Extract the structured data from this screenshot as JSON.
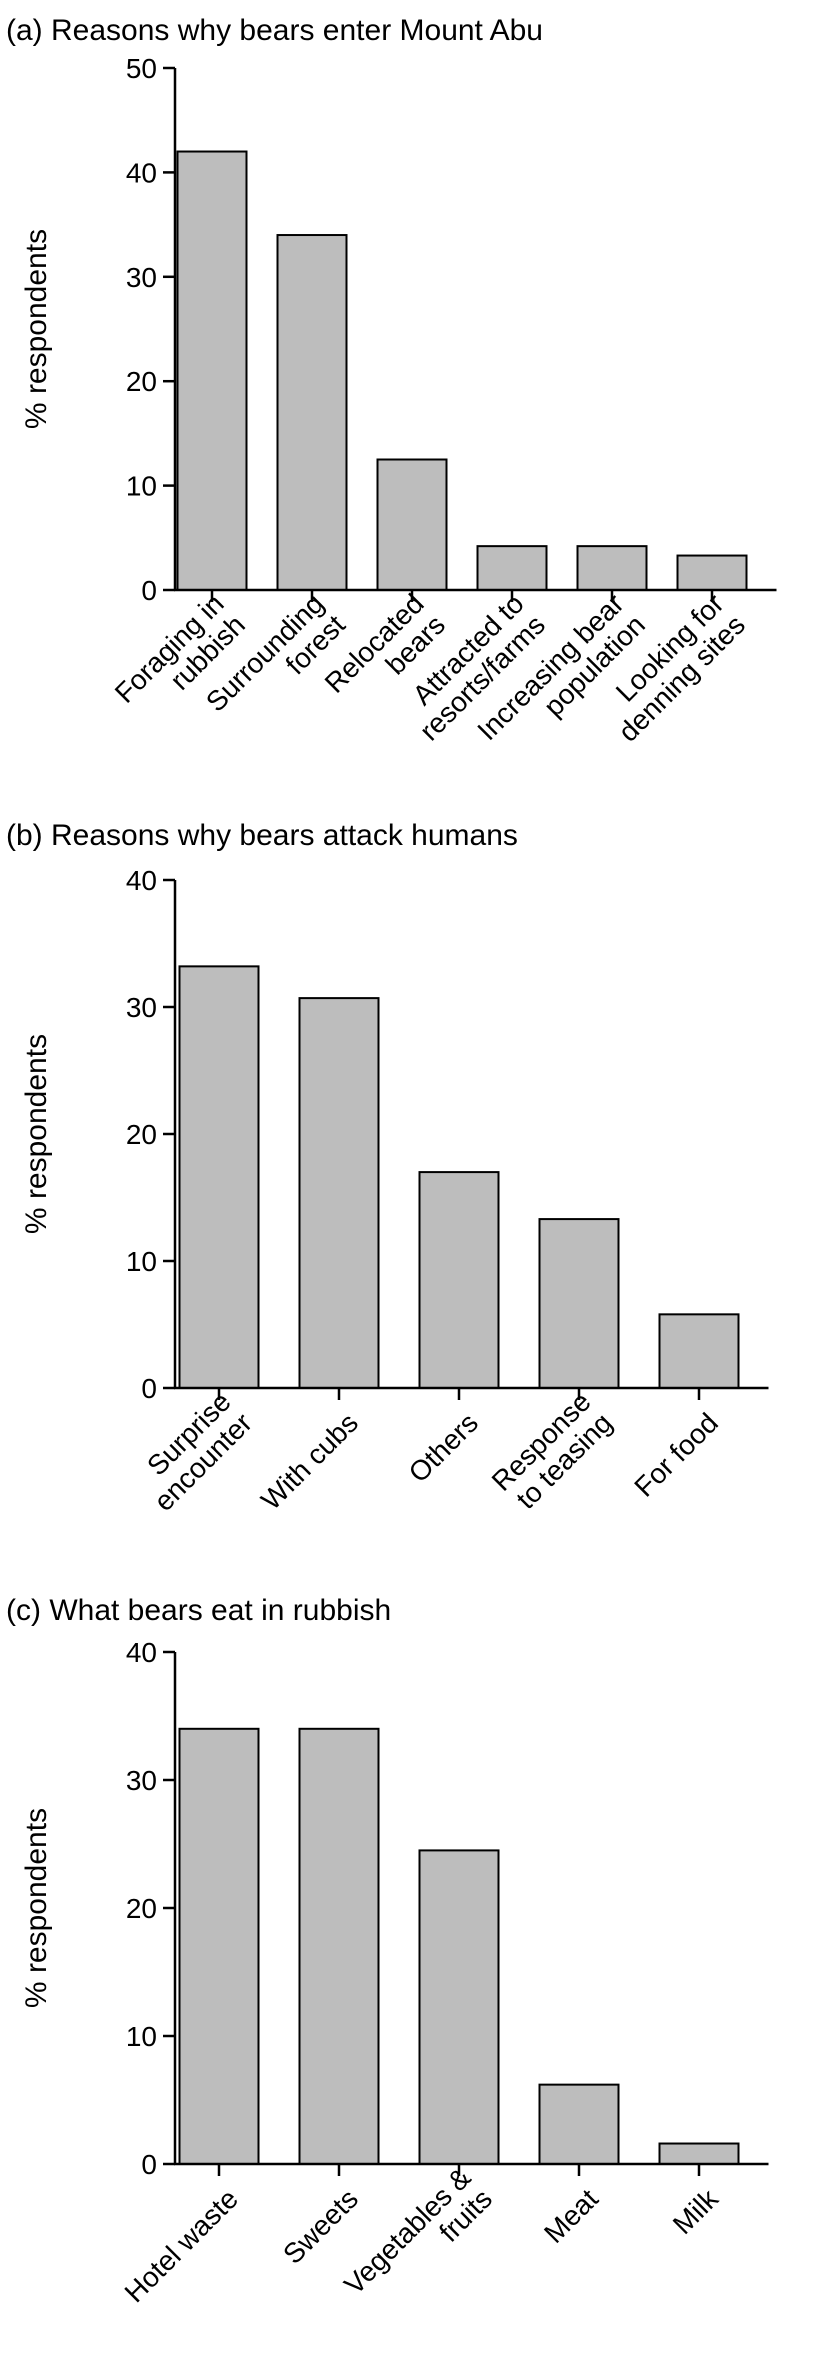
{
  "colors": {
    "bar_fill": "#bdbdbd",
    "bar_stroke": "#000000",
    "axis": "#000000"
  },
  "chart_data": [
    {
      "type": "bar",
      "title": "(a) Reasons why bears enter Mount Abu",
      "ylabel": "% respondents",
      "ylim": [
        0,
        50
      ],
      "yticks": [
        "0",
        "10",
        "20",
        "30",
        "40",
        "50"
      ],
      "grid": false,
      "categories": [
        [
          "Foraging in",
          "rubbish"
        ],
        [
          "Surrounding",
          "forest"
        ],
        [
          "Relocated",
          "bears"
        ],
        [
          "Attracted to",
          "resorts/farms"
        ],
        [
          "Increasing bear",
          "population"
        ],
        [
          "Looking for",
          "denning sites"
        ]
      ],
      "values": [
        42,
        34,
        12.5,
        4.2,
        4.2,
        3.3
      ]
    },
    {
      "type": "bar",
      "title": "(b) Reasons why bears attack humans",
      "ylabel": "% respondents",
      "ylim": [
        0,
        40
      ],
      "yticks": [
        "0",
        "10",
        "20",
        "30",
        "40"
      ],
      "grid": false,
      "categories": [
        [
          "Surprise",
          "encounter"
        ],
        [
          "With cubs"
        ],
        [
          "Others"
        ],
        [
          "Response",
          "to teasing"
        ],
        [
          "For food"
        ]
      ],
      "values": [
        33.2,
        30.7,
        17,
        13.3,
        5.8
      ]
    },
    {
      "type": "bar",
      "title": "(c) What bears eat in rubbish",
      "ylabel": "% respondents",
      "ylim": [
        0,
        40
      ],
      "yticks": [
        "0",
        "10",
        "20",
        "30",
        "40"
      ],
      "grid": false,
      "categories": [
        [
          "Hotel waste"
        ],
        [
          "Sweets"
        ],
        [
          "Vegetables &",
          "fruits"
        ],
        [
          "Meat"
        ],
        [
          "Milk"
        ]
      ],
      "values": [
        34,
        34,
        24.5,
        6.2,
        1.6
      ]
    }
  ]
}
